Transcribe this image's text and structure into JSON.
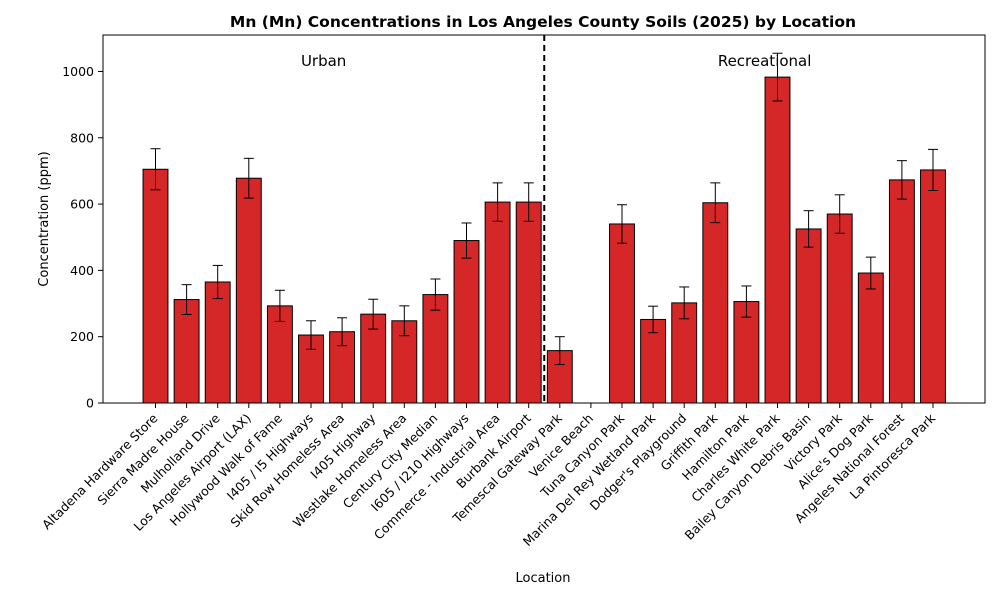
{
  "chart_data": {
    "type": "bar",
    "title": "Mn (Mn) Concentrations in Los Angeles County Soils (2025) by Location",
    "xlabel": "Location",
    "ylabel": "Concentration (ppm)",
    "ylim": [
      0,
      1110
    ],
    "yticks": [
      0,
      200,
      400,
      600,
      800,
      1000
    ],
    "grid": false,
    "bar_color": "#d62728",
    "bar_edge_color": "#000000",
    "categories": [
      "Altadena Hardware Store",
      "Sierra Madre House",
      "Mulholland Drive",
      "Los Angeles Airport (LAX)",
      "Hollywood Walk of Fame",
      "I405 / I5 Highways",
      "Skid Row Homeless Area",
      "I405 Highway",
      "Westlake Homeless Area",
      "Century City Median",
      "I605 / I210 Highways",
      "Commerce - Industrial Area",
      "Burbank Airport",
      "Temescal Gateway Park",
      "Venice Beach",
      "Tuna Canyon Park",
      "Marina Del Rey Wetland Park",
      "Dodger's Playground",
      "Griffith Park",
      "Hamilton Park",
      "Charles White Park",
      "Bailey Canyon Debris Basin",
      "Victory Park",
      "Alice's Dog Park",
      "Angeles National Forest",
      "La Pintoresca Park"
    ],
    "values": [
      705,
      312,
      365,
      678,
      293,
      205,
      215,
      268,
      248,
      327,
      490,
      606,
      606,
      158,
      0,
      540,
      252,
      302,
      604,
      306,
      983,
      525,
      570,
      392,
      673,
      703
    ],
    "errors": [
      62,
      45,
      50,
      60,
      47,
      43,
      42,
      45,
      45,
      47,
      53,
      58,
      58,
      42,
      0,
      58,
      40,
      48,
      60,
      47,
      72,
      55,
      58,
      48,
      58,
      62
    ],
    "regions": [
      {
        "label": "Urban",
        "categories_from": 0,
        "categories_to": 12
      },
      {
        "label": "Recreational",
        "categories_from": 13,
        "categories_to": 25
      }
    ],
    "divider_after_index": 12
  }
}
